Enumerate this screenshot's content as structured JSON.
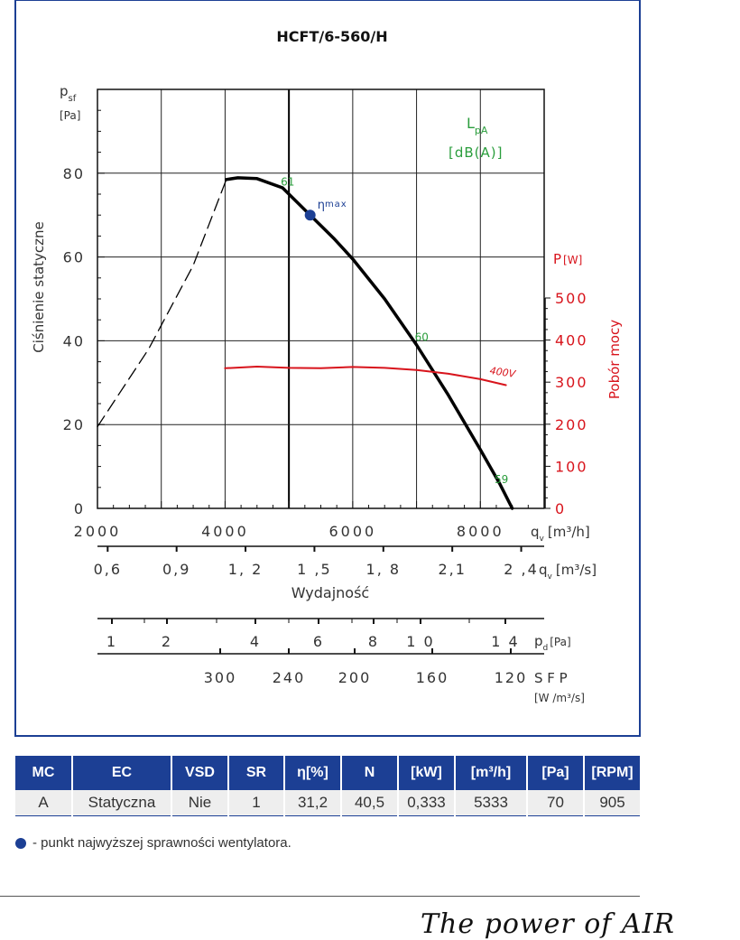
{
  "chart_data": {
    "type": "line",
    "title": "HCFT/6-560/H",
    "y_axis": {
      "label": "Ciśnienie statyczne",
      "symbol": "p",
      "symbol_sub": "sf",
      "unit": "[Pa]",
      "ticks": [
        0,
        20,
        40,
        60,
        80
      ],
      "ylim": [
        0,
        100
      ]
    },
    "y2_axis": {
      "label": "Pobór mocy",
      "symbol": "P",
      "unit": "[W]",
      "ticks": [
        0,
        100,
        200,
        300,
        400,
        500
      ],
      "ylim": [
        0,
        500
      ]
    },
    "x_axis": {
      "symbol": "q",
      "symbol_sub": "v",
      "unit": "[m³/h]",
      "ticks": [
        2000,
        4000,
        6000,
        8000
      ],
      "xlim": [
        2000,
        9000
      ]
    },
    "x_axis_m3s": {
      "symbol": "q",
      "symbol_sub": "v",
      "unit": "[m³/s]",
      "label": "Wydajność",
      "ticks": [
        "0,6",
        "0,9",
        "1, 2",
        "1 ,5",
        "1, 8",
        "2,1",
        "2 ,4"
      ],
      "tick_values": [
        0.6,
        0.9,
        1.2,
        1.5,
        1.8,
        2.1,
        2.4
      ]
    },
    "pd_axis": {
      "symbol": "p",
      "symbol_sub": "d",
      "unit": "[Pa]",
      "ticks": [
        "1",
        "2",
        "4",
        "6",
        "8",
        "1 0",
        "1 4"
      ],
      "tick_values": [
        1,
        2,
        4,
        6,
        8,
        10,
        14
      ]
    },
    "sfp_axis": {
      "label": "S F P",
      "unit": "[W /m³/s]",
      "ticks": [
        "300",
        "240",
        "200",
        "160",
        "120"
      ],
      "tick_values": [
        300,
        240,
        200,
        160,
        120
      ]
    },
    "lpa_label": {
      "symbol": "L",
      "symbol_sub": "pA",
      "unit": "[dB(A)]"
    },
    "grid": true,
    "series": [
      {
        "name": "",
        "color": "#000000",
        "style": "dashed",
        "axis": "y",
        "points": [
          [
            2000,
            19.5
          ],
          [
            2800,
            38
          ],
          [
            3500,
            58
          ],
          [
            4020,
            78.5
          ]
        ]
      },
      {
        "name": "",
        "color": "#000000",
        "style": "solid",
        "axis": "y",
        "points": [
          [
            4020,
            78.5
          ],
          [
            4200,
            78.9
          ],
          [
            4500,
            78.7
          ],
          [
            4900,
            76.5
          ],
          [
            5333,
            70
          ],
          [
            5700,
            64.5
          ],
          [
            6000,
            59.5
          ],
          [
            6500,
            50
          ],
          [
            7000,
            39
          ],
          [
            7500,
            27
          ],
          [
            8000,
            14
          ],
          [
            8300,
            6
          ],
          [
            8500,
            0
          ]
        ]
      },
      {
        "name": "400V",
        "color": "#d8141c",
        "style": "solid",
        "axis": "y2",
        "points": [
          [
            4000,
            333
          ],
          [
            4500,
            337
          ],
          [
            5000,
            334
          ],
          [
            5500,
            333
          ],
          [
            6000,
            336
          ],
          [
            6500,
            334
          ],
          [
            7000,
            329
          ],
          [
            7500,
            320
          ],
          [
            8000,
            307
          ],
          [
            8400,
            293
          ]
        ]
      }
    ],
    "annotations": [
      {
        "text": "61",
        "color": "#2a9d3c",
        "x": 4900,
        "y": 77
      },
      {
        "text": "60",
        "color": "#2a9d3c",
        "x": 7000,
        "y": 40
      },
      {
        "text": "59",
        "color": "#2a9d3c",
        "x": 8250,
        "y": 6
      }
    ],
    "operating_point": {
      "label": "ηmax",
      "x": 5333,
      "y": 70,
      "color": "#1c3f94"
    }
  },
  "table": {
    "headers": [
      "MC",
      "EC",
      "VSD",
      "SR",
      "η[%]",
      "N",
      "[kW]",
      "[m³/h]",
      "[Pa]",
      "[RPM]"
    ],
    "row": [
      "A",
      "Statyczna",
      "Nie",
      "1",
      "31,2",
      "40,5",
      "0,333",
      "5333",
      "70",
      "905"
    ]
  },
  "note": "- punkt najwyższej sprawności wentylatora.",
  "brand": "The power of AIR"
}
